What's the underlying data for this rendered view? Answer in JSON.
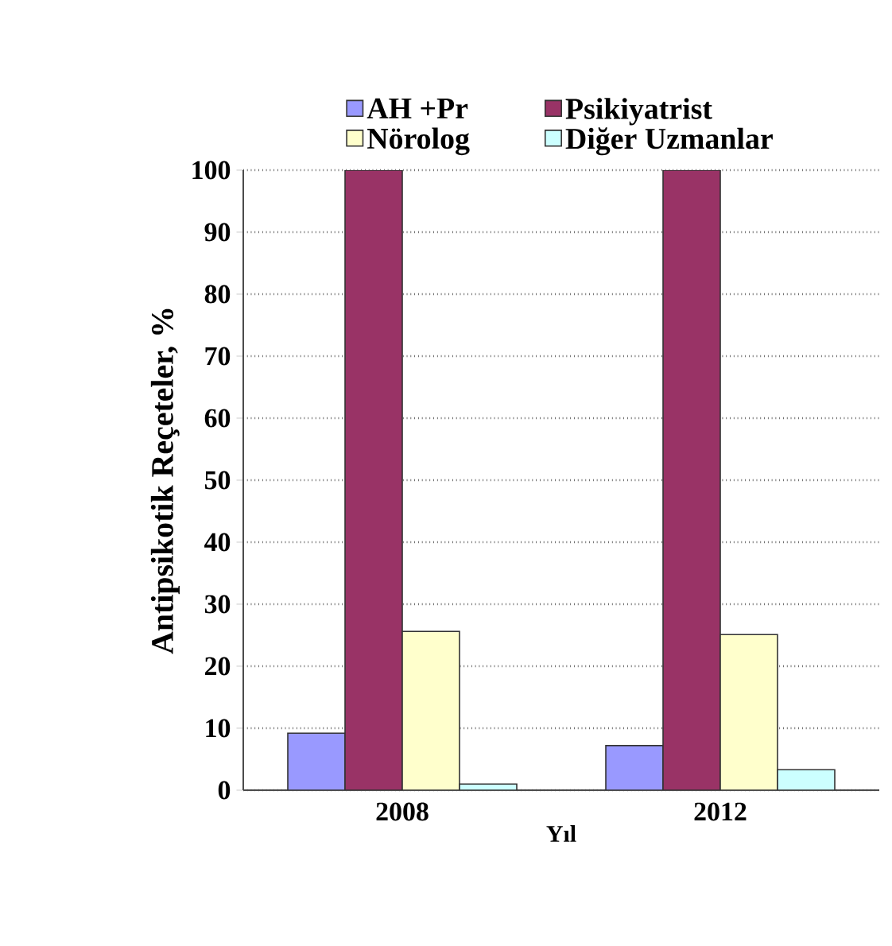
{
  "chart_data": {
    "type": "bar",
    "xlabel": "Yıl",
    "ylabel": "Antipsikotik Reçeteler, %",
    "categories": [
      "2008",
      "2012"
    ],
    "series": [
      {
        "name": "AH +Pr",
        "color": "#9999ff",
        "values": [
          9.2,
          7.2
        ]
      },
      {
        "name": "Psikiyatrist",
        "color": "#993366",
        "values": [
          100,
          100
        ]
      },
      {
        "name": "Nörolog",
        "color": "#ffffcc",
        "values": [
          25.6,
          25.1
        ]
      },
      {
        "name": "Diğer Uzmanlar",
        "color": "#ccffff",
        "values": [
          1,
          3.3
        ]
      }
    ],
    "ylim": [
      0,
      100
    ],
    "yticks": [
      0,
      10,
      20,
      30,
      40,
      50,
      60,
      70,
      80,
      90,
      100
    ],
    "grid": "y",
    "legend": "top"
  }
}
